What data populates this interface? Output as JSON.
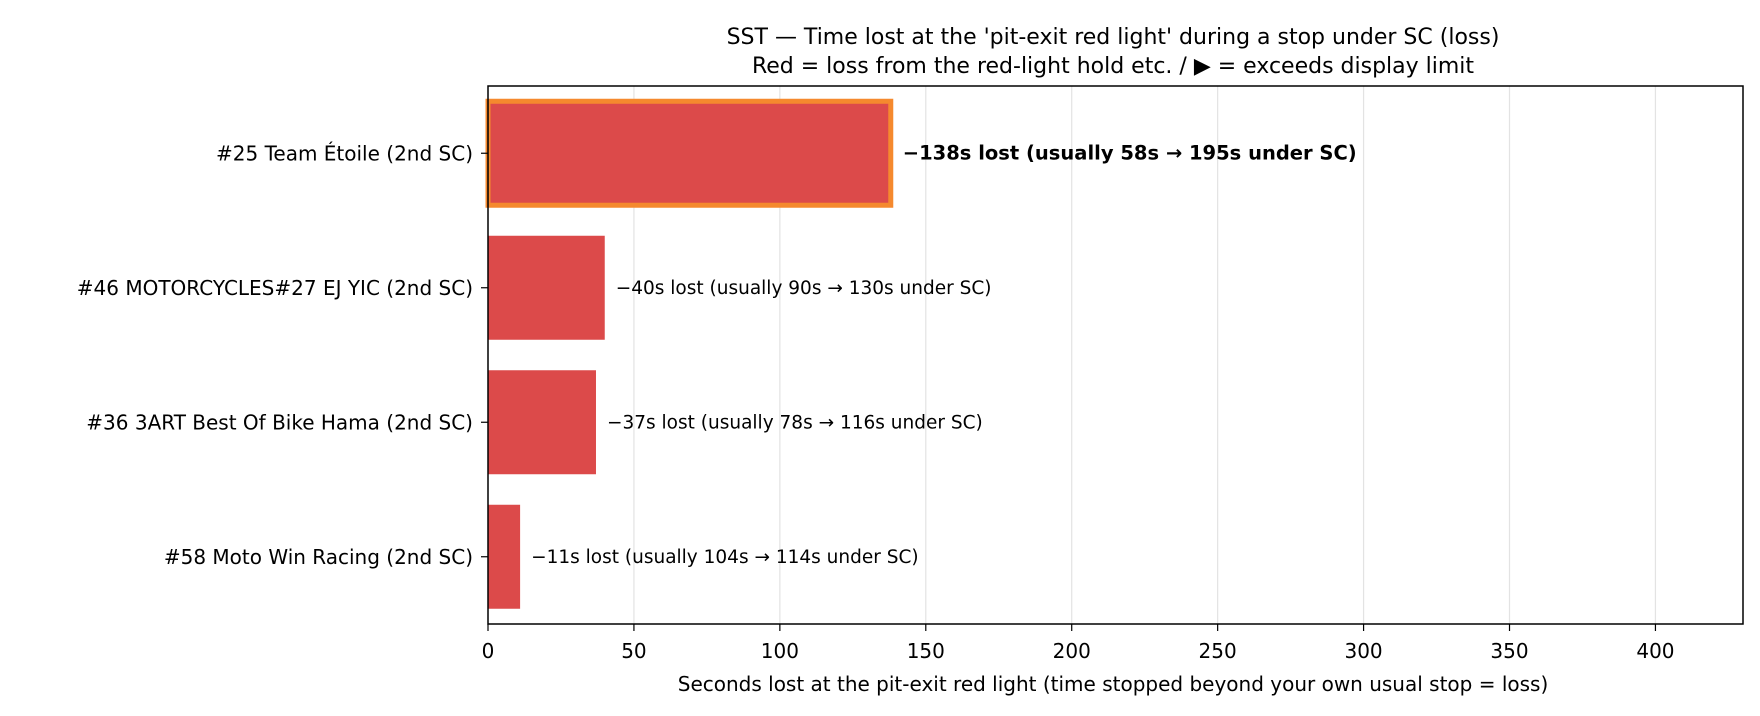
{
  "chart_data": {
    "type": "bar",
    "orientation": "horizontal",
    "title": "SST — Time lost at the 'pit-exit red light' during a stop under SC (loss)",
    "subtitle": "Red = loss from the red-light hold etc. / ▶ = exceeds display limit",
    "xlabel": "Seconds lost at the pit-exit red light (time stopped beyond your own usual stop = loss)",
    "ylabel": "",
    "xlim": [
      0,
      430
    ],
    "xticks": [
      0,
      50,
      100,
      150,
      200,
      250,
      300,
      350,
      400
    ],
    "grid": "vertical",
    "legend": "none",
    "categories": [
      "#25 Team Étoile  (2nd SC)",
      "#46 MOTORCYCLES#27 EJ YIC  (2nd SC)",
      "#36 3ART Best Of Bike Hama  (2nd SC)",
      "#58 Moto Win Racing  (2nd SC)"
    ],
    "values": [
      138,
      40,
      37,
      11
    ],
    "highlight": [
      true,
      false,
      false,
      false
    ],
    "annotations": [
      "−138s lost  (usually 58s → 195s under SC)",
      "−40s lost  (usually 90s → 130s under SC)",
      "−37s lost  (usually 78s → 116s under SC)",
      "−11s lost  (usually 104s → 114s under SC)"
    ],
    "colors": {
      "bar": "#dc4a4a",
      "highlight_edge": "#f5892e",
      "grid": "#e3e3e3",
      "axis": "#000000"
    }
  }
}
